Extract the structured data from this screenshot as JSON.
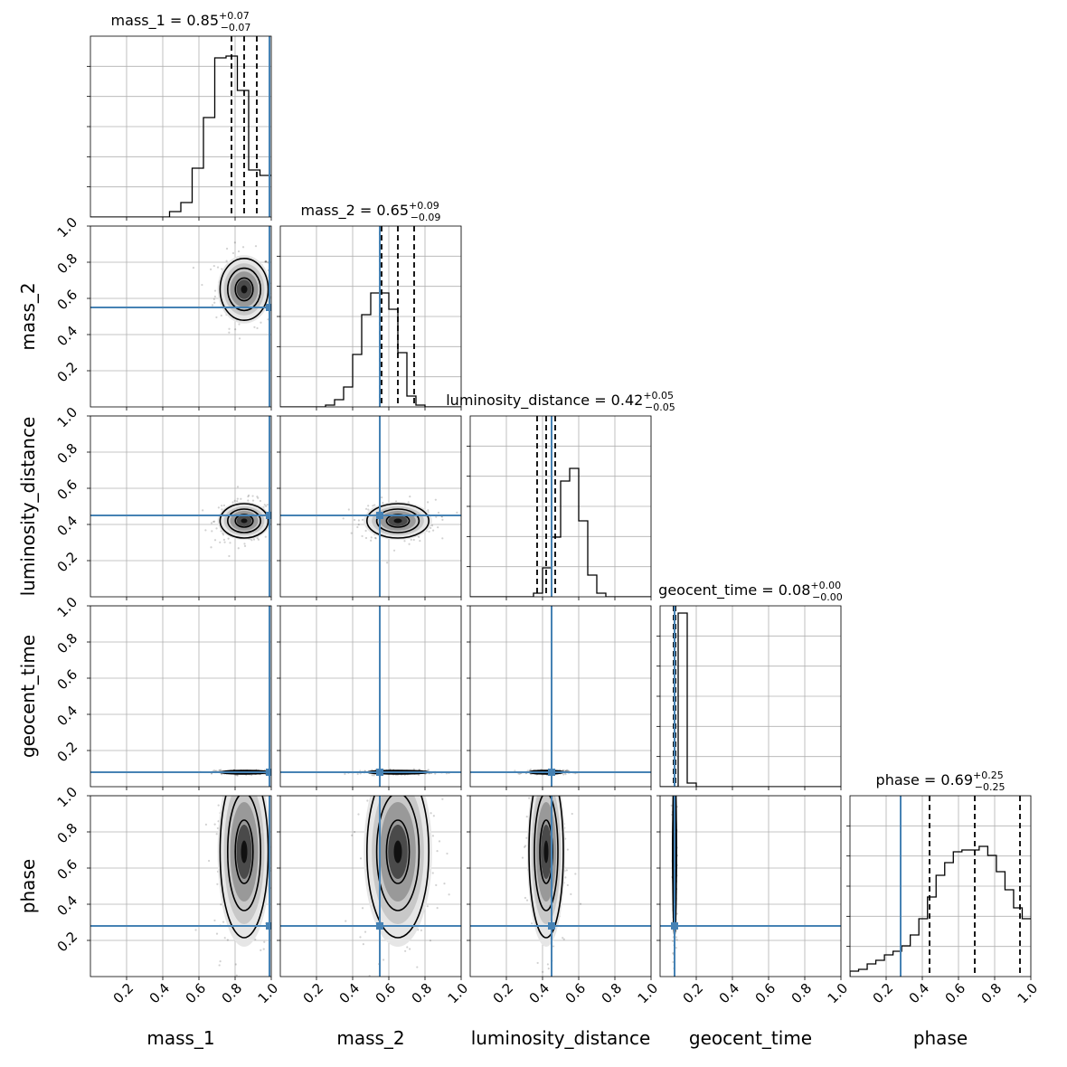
{
  "chart_data": {
    "type": "corner",
    "parameters": [
      {
        "name": "mass_1",
        "median": 0.85,
        "plus": "0.07",
        "minus": "0.07",
        "injection": 0.99,
        "lo": 0.78,
        "hi": 0.92,
        "hist": [
          0,
          0,
          0,
          0,
          0,
          0,
          0,
          0.03,
          0.08,
          0.27,
          0.55,
          0.88,
          0.89,
          0.7,
          0.26,
          0.23
        ]
      },
      {
        "name": "mass_2",
        "median": 0.65,
        "plus": "0.09",
        "minus": "0.09",
        "injection": 0.55,
        "lo": 0.56,
        "hi": 0.74,
        "hist": [
          0,
          0,
          0,
          0,
          0,
          0.01,
          0.04,
          0.11,
          0.29,
          0.51,
          0.63,
          0.63,
          0.54,
          0.3,
          0.06,
          0.01,
          0,
          0,
          0,
          0
        ]
      },
      {
        "name": "luminosity_distance",
        "median": 0.42,
        "plus": "0.05",
        "minus": "0.05",
        "injection": 0.45,
        "lo": 0.37,
        "hi": 0.47,
        "hist": [
          0,
          0,
          0,
          0,
          0,
          0,
          0,
          0.02,
          0.16,
          0.33,
          0.64,
          0.71,
          0.42,
          0.12,
          0.02,
          0,
          0,
          0,
          0,
          0
        ]
      },
      {
        "name": "geocent_time",
        "median": 0.08,
        "plus": "0.00",
        "minus": "0.00",
        "injection": 0.08,
        "lo": 0.075,
        "hi": 0.085,
        "hist": [
          0,
          0,
          0.96,
          0.02,
          0,
          0,
          0,
          0,
          0,
          0,
          0,
          0,
          0,
          0,
          0,
          0,
          0,
          0,
          0,
          0
        ]
      },
      {
        "name": "phase",
        "median": 0.69,
        "plus": "0.25",
        "minus": "0.25",
        "injection": 0.28,
        "lo": 0.44,
        "hi": 0.94,
        "hist": [
          0.03,
          0.04,
          0.07,
          0.09,
          0.12,
          0.14,
          0.17,
          0.23,
          0.32,
          0.44,
          0.56,
          0.63,
          0.69,
          0.7,
          0.7,
          0.72,
          0.67,
          0.58,
          0.48,
          0.38,
          0.32
        ]
      }
    ],
    "axis_range": [
      0,
      1
    ],
    "tick_labels": [
      "0.2",
      "0.4",
      "0.6",
      "0.8",
      "1.0"
    ],
    "ytick_labels": [
      "0.2",
      "0.4",
      "0.6",
      "0.8",
      "1.0"
    ],
    "grid": true,
    "colors": {
      "injection": "#4682b4",
      "hist": "#000000",
      "grid": "#b0b0b0",
      "quantile": "#000000"
    }
  }
}
